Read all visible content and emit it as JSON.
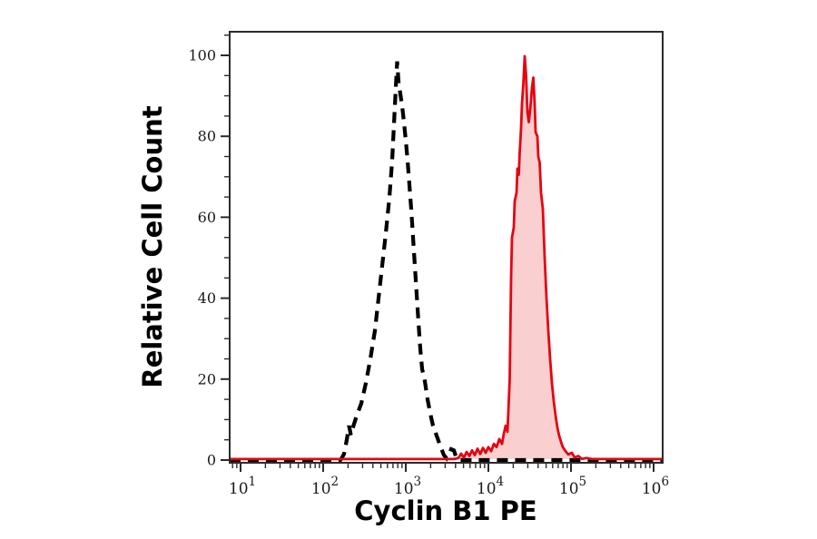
{
  "chart_data": {
    "type": "area",
    "title": "",
    "xlabel": "Cyclin B1 PE",
    "ylabel": "Relative Cell Count",
    "x_scale": "log10",
    "x_tick_label_base": "10",
    "x_tick_exponents": [
      1,
      2,
      3,
      4,
      5,
      6
    ],
    "xlim_log10": [
      0.868,
      6.11
    ],
    "y_ticks": [
      0,
      20,
      40,
      60,
      80,
      100
    ],
    "y_minor_tick_step": 5,
    "ylim": [
      0,
      105.8
    ],
    "grid": false,
    "legend": "none",
    "axis_color": "#2b2b2b",
    "series": [
      {
        "name": "black-dashed-histogram",
        "line_style": "dashed",
        "color": "#000000",
        "fill": "none",
        "points": [
          [
            0.868,
            0
          ],
          [
            2.209,
            0
          ],
          [
            2.22,
            0.3
          ],
          [
            2.253,
            1.5
          ],
          [
            2.286,
            5
          ],
          [
            2.313,
            8.5
          ],
          [
            2.335,
            6.2
          ],
          [
            2.363,
            8.2
          ],
          [
            2.407,
            11
          ],
          [
            2.462,
            14
          ],
          [
            2.516,
            19
          ],
          [
            2.571,
            25
          ],
          [
            2.626,
            32
          ],
          [
            2.67,
            40
          ],
          [
            2.714,
            48
          ],
          [
            2.758,
            56
          ],
          [
            2.802,
            65
          ],
          [
            2.835,
            74
          ],
          [
            2.857,
            83
          ],
          [
            2.879,
            92
          ],
          [
            2.896,
            98.5
          ],
          [
            2.912,
            93.5
          ],
          [
            2.934,
            90.5
          ],
          [
            2.956,
            87.5
          ],
          [
            2.978,
            83.5
          ],
          [
            3.0,
            79
          ],
          [
            3.022,
            74
          ],
          [
            3.044,
            68
          ],
          [
            3.066,
            62
          ],
          [
            3.088,
            55
          ],
          [
            3.11,
            48
          ],
          [
            3.132,
            41
          ],
          [
            3.154,
            34
          ],
          [
            3.176,
            27.5
          ],
          [
            3.198,
            22.5
          ],
          [
            3.231,
            19.5
          ],
          [
            3.264,
            15
          ],
          [
            3.297,
            11.5
          ],
          [
            3.33,
            8.5
          ],
          [
            3.374,
            6
          ],
          [
            3.418,
            3.5
          ],
          [
            3.462,
            1.2
          ],
          [
            3.495,
            0.4
          ],
          [
            3.522,
            1.3
          ],
          [
            3.549,
            2.7
          ],
          [
            3.582,
            2.4
          ],
          [
            3.615,
            0.4
          ],
          [
            3.648,
            0
          ],
          [
            6.11,
            0
          ]
        ]
      },
      {
        "name": "red-filled-histogram",
        "line_style": "solid",
        "color": "#e30613",
        "fill": "#f9cfcf",
        "points": [
          [
            0.868,
            0.25
          ],
          [
            3.582,
            0.25
          ],
          [
            3.637,
            0.5
          ],
          [
            3.67,
            1.6
          ],
          [
            3.703,
            0.6
          ],
          [
            3.736,
            2.0
          ],
          [
            3.769,
            1.0
          ],
          [
            3.802,
            2.4
          ],
          [
            3.835,
            1.2
          ],
          [
            3.868,
            2.8
          ],
          [
            3.901,
            1.5
          ],
          [
            3.934,
            3.0
          ],
          [
            3.967,
            1.8
          ],
          [
            4.0,
            3.2
          ],
          [
            4.033,
            2.2
          ],
          [
            4.066,
            4.0
          ],
          [
            4.099,
            3.2
          ],
          [
            4.132,
            5.2
          ],
          [
            4.165,
            4.0
          ],
          [
            4.187,
            6.5
          ],
          [
            4.209,
            8.5
          ],
          [
            4.231,
            7.0
          ],
          [
            4.242,
            12
          ],
          [
            4.258,
            20
          ],
          [
            4.275,
            45
          ],
          [
            4.286,
            55
          ],
          [
            4.308,
            57.5
          ],
          [
            4.319,
            64
          ],
          [
            4.341,
            66
          ],
          [
            4.352,
            72
          ],
          [
            4.368,
            70.5
          ],
          [
            4.379,
            76
          ],
          [
            4.396,
            82
          ],
          [
            4.407,
            88
          ],
          [
            4.423,
            93
          ],
          [
            4.44,
            99.8
          ],
          [
            4.456,
            95
          ],
          [
            4.473,
            86
          ],
          [
            4.489,
            83.5
          ],
          [
            4.505,
            86.5
          ],
          [
            4.527,
            92
          ],
          [
            4.544,
            94.5
          ],
          [
            4.56,
            88
          ],
          [
            4.571,
            81
          ],
          [
            4.593,
            80
          ],
          [
            4.604,
            75
          ],
          [
            4.621,
            73.5
          ],
          [
            4.637,
            66
          ],
          [
            4.659,
            62
          ],
          [
            4.67,
            56
          ],
          [
            4.681,
            50
          ],
          [
            4.703,
            40
          ],
          [
            4.725,
            32
          ],
          [
            4.747,
            25
          ],
          [
            4.769,
            19
          ],
          [
            4.791,
            14.5
          ],
          [
            4.813,
            11
          ],
          [
            4.835,
            8
          ],
          [
            4.857,
            6
          ],
          [
            4.879,
            4.5
          ],
          [
            4.901,
            3.2
          ],
          [
            4.934,
            2.2
          ],
          [
            4.967,
            1.4
          ],
          [
            5.011,
            1.8
          ],
          [
            5.044,
            0.6
          ],
          [
            5.088,
            1.0
          ],
          [
            5.132,
            0.3
          ],
          [
            5.187,
            0.5
          ],
          [
            5.253,
            0.25
          ],
          [
            6.11,
            0.25
          ]
        ]
      }
    ]
  }
}
